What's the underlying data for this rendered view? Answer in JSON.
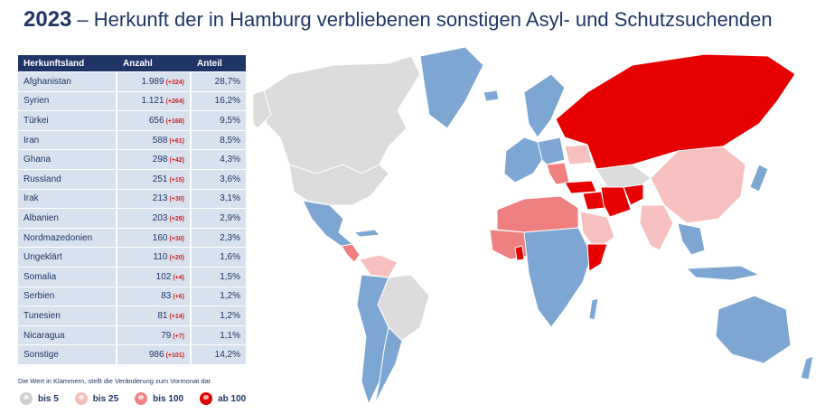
{
  "header": {
    "year": "2023",
    "title": "– Herkunft der in Hamburg verbliebenen sonstigen Asyl- und Schutzsuchenden"
  },
  "table": {
    "columns": [
      "Herkunftsland",
      "Anzahl",
      "Anteil"
    ],
    "rows": [
      {
        "country": "Afghanistan",
        "count": "1.989",
        "change": "(+324)",
        "share": "28,7%"
      },
      {
        "country": "Syrien",
        "count": "1.121",
        "change": "(+264)",
        "share": "16,2%"
      },
      {
        "country": "Türkei",
        "count": "656",
        "change": "(+168)",
        "share": "9,5%"
      },
      {
        "country": "Iran",
        "count": "588",
        "change": "(+61)",
        "share": "8,5%"
      },
      {
        "country": "Ghana",
        "count": "298",
        "change": "(+42)",
        "share": "4,3%"
      },
      {
        "country": "Russland",
        "count": "251",
        "change": "(+15)",
        "share": "3,6%"
      },
      {
        "country": "Irak",
        "count": "213",
        "change": "(+30)",
        "share": "3,1%"
      },
      {
        "country": "Albanien",
        "count": "203",
        "change": "(+29)",
        "share": "2,9%"
      },
      {
        "country": "Nordmazedonien",
        "count": "160",
        "change": "(+30)",
        "share": "2,3%"
      },
      {
        "country": "Ungeklärt",
        "count": "110",
        "change": "(+20)",
        "share": "1,6%"
      },
      {
        "country": "Somalia",
        "count": "102",
        "change": "(+4)",
        "share": "1,5%"
      },
      {
        "country": "Serbien",
        "count": "83",
        "change": "(+6)",
        "share": "1,2%"
      },
      {
        "country": "Tunesien",
        "count": "81",
        "change": "(+14)",
        "share": "1,2%"
      },
      {
        "country": "Nicaragua",
        "count": "79",
        "change": "(+7)",
        "share": "1,1%"
      },
      {
        "country": "Sonstige",
        "count": "986",
        "change": "(+101)",
        "share": "14,2%"
      }
    ]
  },
  "note": "Die Wert in Klammern, stellt die Veränderung zum Vormonat dar.",
  "legend": [
    {
      "label": "bis 5",
      "color": "#d9d9d9"
    },
    {
      "label": "bis 25",
      "color": "#f7c4c4"
    },
    {
      "label": "bis 100",
      "color": "#f08a8a"
    },
    {
      "label": "ab 100",
      "color": "#e00000"
    }
  ],
  "colors": {
    "none": "#dcdcdc",
    "low": "#7da7d2",
    "bis25": "#f7c0c0",
    "bis100": "#f07f7f",
    "ab100": "#e60000",
    "header": "#1f3566",
    "row": "#d8e1ee"
  }
}
